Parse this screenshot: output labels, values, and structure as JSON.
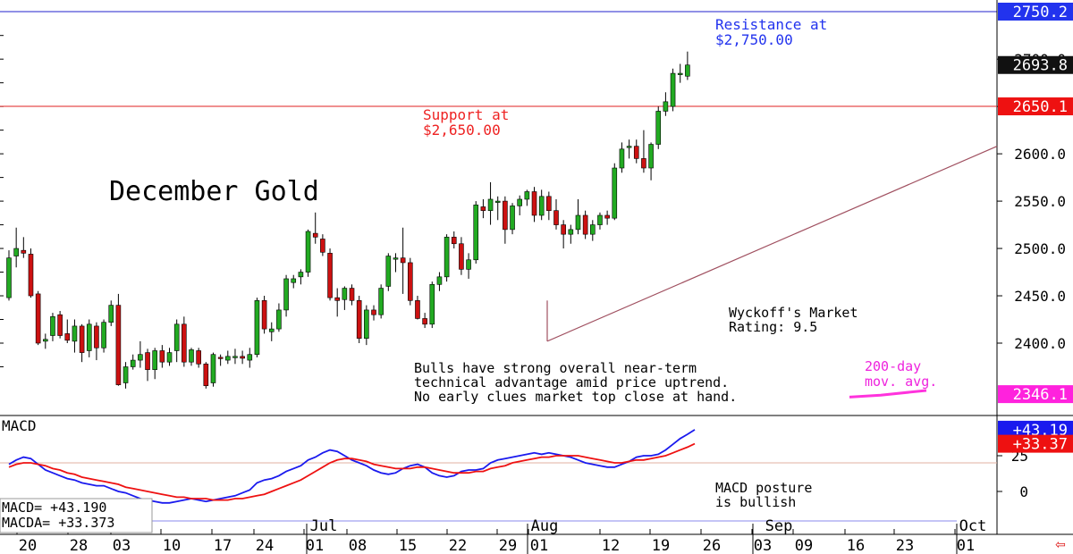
{
  "chart_data": [
    {
      "type": "candlestick",
      "title": "December Gold",
      "ylim": [
        2340,
        2755
      ],
      "y_ticks": [
        "2400.0",
        "2450.0",
        "2500.0",
        "2550.0",
        "2600.0",
        "2650.0",
        "2700.0",
        "2750.0"
      ],
      "x_tick_labels": [
        "20",
        "28",
        "03",
        "10",
        "17",
        "24",
        "01",
        "08",
        "15",
        "22",
        "29",
        "01",
        "12",
        "19",
        "26",
        "03",
        "09",
        "16",
        "23",
        "01"
      ],
      "month_labels": [
        "Jul",
        "Aug",
        "Sep",
        "Oct"
      ],
      "candles": [
        {
          "o": 2448,
          "h": 2498,
          "l": 2445,
          "c": 2490
        },
        {
          "o": 2492,
          "h": 2522,
          "l": 2480,
          "c": 2500
        },
        {
          "o": 2498,
          "h": 2512,
          "l": 2490,
          "c": 2495
        },
        {
          "o": 2494,
          "h": 2500,
          "l": 2448,
          "c": 2450
        },
        {
          "o": 2452,
          "h": 2455,
          "l": 2398,
          "c": 2400
        },
        {
          "o": 2402,
          "h": 2410,
          "l": 2394,
          "c": 2404
        },
        {
          "o": 2408,
          "h": 2432,
          "l": 2402,
          "c": 2428
        },
        {
          "o": 2430,
          "h": 2434,
          "l": 2405,
          "c": 2408
        },
        {
          "o": 2410,
          "h": 2425,
          "l": 2400,
          "c": 2403
        },
        {
          "o": 2402,
          "h": 2425,
          "l": 2390,
          "c": 2418
        },
        {
          "o": 2418,
          "h": 2420,
          "l": 2380,
          "c": 2390
        },
        {
          "o": 2392,
          "h": 2425,
          "l": 2385,
          "c": 2420
        },
        {
          "o": 2418,
          "h": 2422,
          "l": 2382,
          "c": 2395
        },
        {
          "o": 2395,
          "h": 2425,
          "l": 2390,
          "c": 2422
        },
        {
          "o": 2422,
          "h": 2445,
          "l": 2418,
          "c": 2440
        },
        {
          "o": 2440,
          "h": 2452,
          "l": 2355,
          "c": 2356
        },
        {
          "o": 2358,
          "h": 2380,
          "l": 2352,
          "c": 2375
        },
        {
          "o": 2375,
          "h": 2388,
          "l": 2372,
          "c": 2382
        },
        {
          "o": 2382,
          "h": 2402,
          "l": 2374,
          "c": 2388
        },
        {
          "o": 2390,
          "h": 2394,
          "l": 2360,
          "c": 2372
        },
        {
          "o": 2372,
          "h": 2395,
          "l": 2362,
          "c": 2392
        },
        {
          "o": 2392,
          "h": 2398,
          "l": 2374,
          "c": 2380
        },
        {
          "o": 2380,
          "h": 2395,
          "l": 2376,
          "c": 2390
        },
        {
          "o": 2392,
          "h": 2425,
          "l": 2380,
          "c": 2420
        },
        {
          "o": 2420,
          "h": 2428,
          "l": 2375,
          "c": 2380
        },
        {
          "o": 2380,
          "h": 2395,
          "l": 2376,
          "c": 2393
        },
        {
          "o": 2392,
          "h": 2395,
          "l": 2374,
          "c": 2378
        },
        {
          "o": 2378,
          "h": 2380,
          "l": 2352,
          "c": 2355
        },
        {
          "o": 2358,
          "h": 2390,
          "l": 2354,
          "c": 2388
        },
        {
          "o": 2385,
          "h": 2388,
          "l": 2376,
          "c": 2384
        },
        {
          "o": 2382,
          "h": 2392,
          "l": 2378,
          "c": 2386
        },
        {
          "o": 2386,
          "h": 2394,
          "l": 2378,
          "c": 2386
        },
        {
          "o": 2386,
          "h": 2392,
          "l": 2378,
          "c": 2384
        },
        {
          "o": 2382,
          "h": 2395,
          "l": 2374,
          "c": 2388
        },
        {
          "o": 2388,
          "h": 2448,
          "l": 2385,
          "c": 2445
        },
        {
          "o": 2445,
          "h": 2450,
          "l": 2410,
          "c": 2415
        },
        {
          "o": 2412,
          "h": 2422,
          "l": 2402,
          "c": 2415
        },
        {
          "o": 2415,
          "h": 2442,
          "l": 2412,
          "c": 2435
        },
        {
          "o": 2435,
          "h": 2472,
          "l": 2428,
          "c": 2468
        },
        {
          "o": 2464,
          "h": 2472,
          "l": 2458,
          "c": 2468
        },
        {
          "o": 2470,
          "h": 2478,
          "l": 2462,
          "c": 2475
        },
        {
          "o": 2475,
          "h": 2520,
          "l": 2470,
          "c": 2518
        },
        {
          "o": 2516,
          "h": 2538,
          "l": 2505,
          "c": 2512
        },
        {
          "o": 2510,
          "h": 2515,
          "l": 2492,
          "c": 2496
        },
        {
          "o": 2495,
          "h": 2500,
          "l": 2445,
          "c": 2448
        },
        {
          "o": 2448,
          "h": 2458,
          "l": 2428,
          "c": 2445
        },
        {
          "o": 2446,
          "h": 2460,
          "l": 2435,
          "c": 2458
        },
        {
          "o": 2458,
          "h": 2462,
          "l": 2440,
          "c": 2445
        },
        {
          "o": 2445,
          "h": 2450,
          "l": 2400,
          "c": 2405
        },
        {
          "o": 2405,
          "h": 2440,
          "l": 2398,
          "c": 2435
        },
        {
          "o": 2435,
          "h": 2440,
          "l": 2424,
          "c": 2430
        },
        {
          "o": 2430,
          "h": 2462,
          "l": 2426,
          "c": 2458
        },
        {
          "o": 2460,
          "h": 2495,
          "l": 2455,
          "c": 2492
        },
        {
          "o": 2490,
          "h": 2495,
          "l": 2475,
          "c": 2490
        },
        {
          "o": 2490,
          "h": 2522,
          "l": 2452,
          "c": 2485
        },
        {
          "o": 2485,
          "h": 2490,
          "l": 2440,
          "c": 2445
        },
        {
          "o": 2445,
          "h": 2450,
          "l": 2425,
          "c": 2426
        },
        {
          "o": 2426,
          "h": 2432,
          "l": 2416,
          "c": 2420
        },
        {
          "o": 2420,
          "h": 2465,
          "l": 2416,
          "c": 2462
        },
        {
          "o": 2462,
          "h": 2475,
          "l": 2455,
          "c": 2470
        },
        {
          "o": 2470,
          "h": 2515,
          "l": 2465,
          "c": 2512
        },
        {
          "o": 2512,
          "h": 2518,
          "l": 2500,
          "c": 2505
        },
        {
          "o": 2505,
          "h": 2512,
          "l": 2472,
          "c": 2478
        },
        {
          "o": 2478,
          "h": 2495,
          "l": 2468,
          "c": 2488
        },
        {
          "o": 2488,
          "h": 2550,
          "l": 2484,
          "c": 2546
        },
        {
          "o": 2544,
          "h": 2552,
          "l": 2532,
          "c": 2540
        },
        {
          "o": 2540,
          "h": 2570,
          "l": 2525,
          "c": 2552
        },
        {
          "o": 2550,
          "h": 2555,
          "l": 2530,
          "c": 2550
        },
        {
          "o": 2550,
          "h": 2555,
          "l": 2505,
          "c": 2520
        },
        {
          "o": 2520,
          "h": 2548,
          "l": 2515,
          "c": 2545
        },
        {
          "o": 2545,
          "h": 2556,
          "l": 2535,
          "c": 2552
        },
        {
          "o": 2552,
          "h": 2562,
          "l": 2545,
          "c": 2560
        },
        {
          "o": 2560,
          "h": 2565,
          "l": 2528,
          "c": 2535
        },
        {
          "o": 2535,
          "h": 2562,
          "l": 2530,
          "c": 2555
        },
        {
          "o": 2555,
          "h": 2560,
          "l": 2530,
          "c": 2540
        },
        {
          "o": 2540,
          "h": 2552,
          "l": 2520,
          "c": 2525
        },
        {
          "o": 2525,
          "h": 2530,
          "l": 2500,
          "c": 2515
        },
        {
          "o": 2515,
          "h": 2525,
          "l": 2505,
          "c": 2520
        },
        {
          "o": 2520,
          "h": 2552,
          "l": 2515,
          "c": 2535
        },
        {
          "o": 2535,
          "h": 2540,
          "l": 2510,
          "c": 2515
        },
        {
          "o": 2515,
          "h": 2530,
          "l": 2508,
          "c": 2525
        },
        {
          "o": 2525,
          "h": 2538,
          "l": 2520,
          "c": 2535
        },
        {
          "o": 2535,
          "h": 2540,
          "l": 2525,
          "c": 2532
        },
        {
          "o": 2532,
          "h": 2590,
          "l": 2530,
          "c": 2585
        },
        {
          "o": 2585,
          "h": 2612,
          "l": 2580,
          "c": 2605
        },
        {
          "o": 2608,
          "h": 2615,
          "l": 2595,
          "c": 2608
        },
        {
          "o": 2608,
          "h": 2615,
          "l": 2590,
          "c": 2595
        },
        {
          "o": 2595,
          "h": 2625,
          "l": 2580,
          "c": 2585
        },
        {
          "o": 2585,
          "h": 2612,
          "l": 2572,
          "c": 2610
        },
        {
          "o": 2610,
          "h": 2650,
          "l": 2605,
          "c": 2645
        },
        {
          "o": 2645,
          "h": 2665,
          "l": 2640,
          "c": 2655
        },
        {
          "o": 2650,
          "h": 2690,
          "l": 2645,
          "c": 2685
        },
        {
          "o": 2685,
          "h": 2695,
          "l": 2675,
          "c": 2685
        },
        {
          "o": 2682,
          "h": 2708,
          "l": 2678,
          "c": 2693.8
        }
      ],
      "support": {
        "value": 2650.1,
        "label": "2650.1"
      },
      "resistance": {
        "value": 2750.2,
        "label": "2750.2"
      },
      "last_price": {
        "value": 2693.8,
        "label": "2693.8"
      },
      "ma200": {
        "value": 2346.1,
        "label": "2346.1"
      },
      "colors": {
        "up": "#22aa22",
        "down": "#cc1111",
        "support": "#e02020",
        "resistance": "#2222cc",
        "ma200": "#ff33dd",
        "trendline": "#a05060"
      }
    },
    {
      "type": "line",
      "ylim": [
        -15,
        55
      ],
      "y_ticks": [
        "25",
        "0"
      ],
      "series": [
        {
          "name": "MACD",
          "value_label": "+43.19",
          "color": "#1a1aee",
          "values": [
            19,
            22,
            24,
            23,
            19,
            15,
            13,
            11,
            9,
            8,
            6,
            5,
            4,
            4,
            2,
            0,
            -1,
            -3,
            -5,
            -6,
            -7,
            -8,
            -8,
            -7,
            -6,
            -5,
            -6,
            -7,
            -6,
            -5,
            -4,
            -3,
            -1,
            1,
            6,
            8,
            9,
            11,
            14,
            16,
            18,
            22,
            24,
            27,
            29,
            28,
            25,
            22,
            20,
            18,
            15,
            13,
            12,
            13,
            16,
            18,
            19,
            17,
            13,
            11,
            10,
            11,
            14,
            15,
            15,
            16,
            20,
            22,
            23,
            24,
            25,
            26,
            27,
            26,
            27,
            26,
            25,
            24,
            22,
            20,
            19,
            18,
            17,
            17,
            19,
            21,
            24,
            25,
            25,
            26,
            29,
            33,
            37,
            40,
            43.19
          ]
        },
        {
          "name": "MACDA",
          "value_label": "+33.37",
          "color": "#ee1111",
          "values": [
            17,
            19,
            20,
            20,
            19,
            18,
            16,
            15,
            13,
            12,
            10,
            9,
            8,
            7,
            6,
            5,
            3,
            2,
            1,
            0,
            -1,
            -2,
            -3,
            -4,
            -4,
            -5,
            -5,
            -5,
            -6,
            -6,
            -6,
            -5,
            -5,
            -4,
            -3,
            -2,
            0,
            2,
            4,
            6,
            8,
            11,
            14,
            17,
            20,
            22,
            23,
            23,
            22,
            21,
            19,
            18,
            17,
            16,
            16,
            16,
            17,
            17,
            16,
            15,
            14,
            13,
            13,
            13,
            14,
            14,
            16,
            17,
            18,
            20,
            21,
            22,
            23,
            24,
            24,
            25,
            25,
            25,
            25,
            24,
            23,
            22,
            21,
            20,
            20,
            21,
            22,
            22,
            23,
            24,
            25,
            27,
            29,
            31,
            33.37
          ]
        }
      ],
      "reference_level": 20,
      "colors": {
        "zero_line": "#8888ee",
        "ref_line": "#e0b0a0"
      }
    }
  ],
  "header": {
    "label": "MACD"
  },
  "annotations": {
    "resistance_text": [
      "Resistance at",
      "$2,750.00"
    ],
    "support_text": [
      "Support at",
      "$2,650.00"
    ],
    "title": "December Gold",
    "wyckoff": [
      "Wyckoff's Market",
      "Rating: 9.5"
    ],
    "bulls": [
      "Bulls have strong overall near-term",
      "technical advantage amid price uptrend.",
      "No early clues market top close at hand."
    ],
    "ma200": [
      "200-day",
      "mov. avg."
    ],
    "macd_note": [
      "MACD posture",
      "is bullish"
    ]
  },
  "macd_readout": {
    "macd": "MACD=   +43.190",
    "macda": "MACDA=  +33.373"
  },
  "back_arrow": "⇦"
}
